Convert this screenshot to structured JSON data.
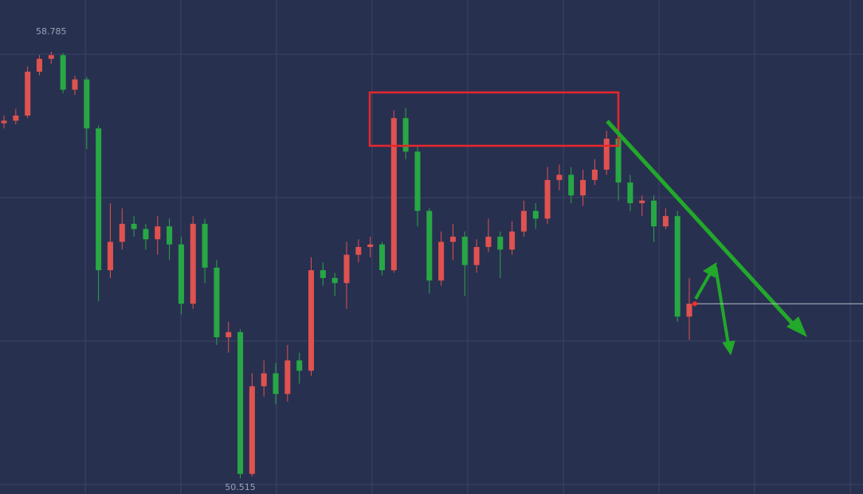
{
  "chart_data": {
    "type": "candlestick",
    "open": [
      57.4,
      57.45,
      57.55,
      58.4,
      58.65,
      58.72,
      58.05,
      58.25,
      57.3,
      54.55,
      55.1,
      55.45,
      55.35,
      55.15,
      55.4,
      55.05,
      53.9,
      55.45,
      54.6,
      53.25,
      53.35,
      50.6,
      52.3,
      52.55,
      52.15,
      52.8,
      52.6,
      54.55,
      54.4,
      54.3,
      54.85,
      55.0,
      55.05,
      54.55,
      57.5,
      56.85,
      55.7,
      54.35,
      55.1,
      55.2,
      54.65,
      55.0,
      55.2,
      54.95,
      55.3,
      55.7,
      55.55,
      56.3,
      56.4,
      56.0,
      56.3,
      56.5,
      57.1,
      56.25,
      55.85,
      55.9,
      55.4,
      55.6,
      53.65
    ],
    "high": [
      57.55,
      57.68,
      58.5,
      58.72,
      58.785,
      58.76,
      58.32,
      58.3,
      57.35,
      55.85,
      55.75,
      55.6,
      55.45,
      55.6,
      55.55,
      55.2,
      55.6,
      55.55,
      54.75,
      53.55,
      53.4,
      52.55,
      52.8,
      52.75,
      53.1,
      52.95,
      54.8,
      54.7,
      54.5,
      55.1,
      55.15,
      55.2,
      55.1,
      57.65,
      57.7,
      56.95,
      55.75,
      55.3,
      55.45,
      55.3,
      55.15,
      55.55,
      55.3,
      55.5,
      55.9,
      55.85,
      56.55,
      56.6,
      56.55,
      56.5,
      56.7,
      57.25,
      57.15,
      56.4,
      56.0,
      56.0,
      55.75,
      55.7,
      54.4
    ],
    "low": [
      57.3,
      57.38,
      57.5,
      58.33,
      58.55,
      57.98,
      57.95,
      56.9,
      53.95,
      54.4,
      54.95,
      55.2,
      54.95,
      54.85,
      54.75,
      53.7,
      53.8,
      54.3,
      53.1,
      52.95,
      50.515,
      50.55,
      52.1,
      51.95,
      52.0,
      52.35,
      52.5,
      54.25,
      54.05,
      53.8,
      54.7,
      54.8,
      54.45,
      54.5,
      56.7,
      55.4,
      54.1,
      54.25,
      54.75,
      54.05,
      54.5,
      54.9,
      54.4,
      54.85,
      55.2,
      55.35,
      55.45,
      56.1,
      55.85,
      55.8,
      56.2,
      56.4,
      55.9,
      55.7,
      55.6,
      55.1,
      55.35,
      53.55,
      53.2
    ],
    "close": [
      57.45,
      57.55,
      58.4,
      58.65,
      58.72,
      58.05,
      58.25,
      57.3,
      54.55,
      55.1,
      55.45,
      55.35,
      55.15,
      55.4,
      55.05,
      53.9,
      55.45,
      54.6,
      53.25,
      53.35,
      50.6,
      52.3,
      52.55,
      52.15,
      52.8,
      52.6,
      54.55,
      54.4,
      54.3,
      54.85,
      55.0,
      55.05,
      54.55,
      57.5,
      56.85,
      55.7,
      54.35,
      55.1,
      55.2,
      54.65,
      55.0,
      55.2,
      54.95,
      55.3,
      55.7,
      55.55,
      56.3,
      56.4,
      56.0,
      56.3,
      56.5,
      57.1,
      56.25,
      55.85,
      55.9,
      55.4,
      55.6,
      53.65,
      53.9
    ],
    "high_label": "58.785",
    "low_label": "50.515",
    "ylim": [
      50.21,
      59.79
    ],
    "up_color": "#e0524f",
    "down_color": "#27a844"
  }
}
